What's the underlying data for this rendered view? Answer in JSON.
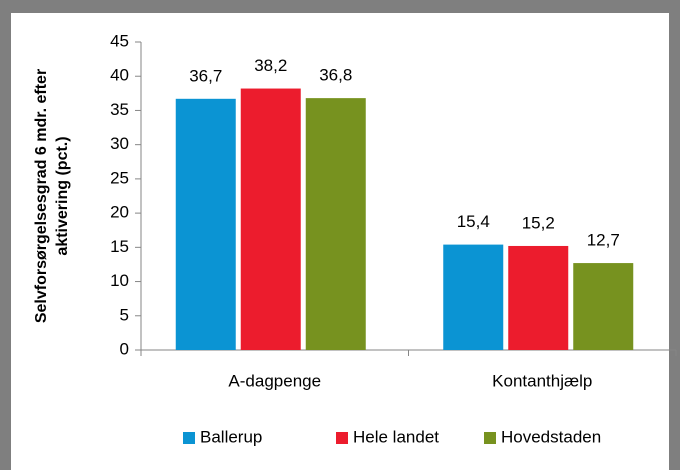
{
  "chart_data": {
    "type": "bar",
    "ylabel": [
      "Selvforsørgelsesgrad 6 mdr. efter",
      "aktivering (pct.)"
    ],
    "categories": [
      "A-dagpenge",
      "Kontanthjælp"
    ],
    "series": [
      {
        "name": "Ballerup",
        "color": "#0b94d3",
        "values": [
          36.7,
          15.4
        ],
        "value_labels": [
          "36,7",
          "15,4"
        ]
      },
      {
        "name": "Hele landet",
        "color": "#ec1c2d",
        "values": [
          38.2,
          15.2
        ],
        "value_labels": [
          "38,2",
          "15,2"
        ]
      },
      {
        "name": "Hovedstaden",
        "color": "#77921f",
        "values": [
          36.8,
          12.7
        ],
        "value_labels": [
          "36,8",
          "12,7"
        ]
      }
    ],
    "ylim": [
      0,
      45
    ],
    "yticks": [
      0,
      5,
      10,
      15,
      20,
      25,
      30,
      35,
      40,
      45
    ],
    "legend": "bottom"
  }
}
